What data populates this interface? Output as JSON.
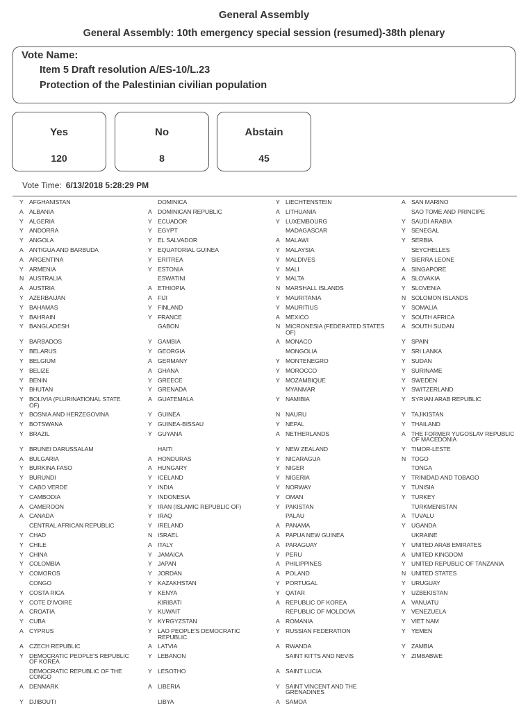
{
  "header": {
    "title": "General Assembly",
    "subtitle": "General Assembly: 10th emergency special session (resumed)-38th plenary"
  },
  "vote_name": {
    "label": "Vote Name:",
    "line1": "Item 5 Draft resolution A/ES-10/L.23",
    "line2": "Protection of the Palestinian civilian population"
  },
  "tally": [
    {
      "label": "Yes",
      "count": "120"
    },
    {
      "label": "No",
      "count": "8"
    },
    {
      "label": "Abstain",
      "count": "45"
    }
  ],
  "vote_time": {
    "label": "Vote Time:",
    "value": "6/13/2018 5:28:29 PM"
  },
  "votes": {
    "columns": [
      [
        [
          "Y",
          "AFGHANISTAN"
        ],
        [
          "A",
          "ALBANIA"
        ],
        [
          "Y",
          "ALGERIA"
        ],
        [
          "Y",
          "ANDORRA"
        ],
        [
          "Y",
          "ANGOLA"
        ],
        [
          "A",
          "ANTIGUA AND BARBUDA"
        ],
        [
          "A",
          "ARGENTINA"
        ],
        [
          "Y",
          "ARMENIA"
        ],
        [
          "N",
          "AUSTRALIA"
        ],
        [
          "A",
          "AUSTRIA"
        ],
        [
          "Y",
          "AZERBAIJAN"
        ],
        [
          "Y",
          "BAHAMAS"
        ],
        [
          "Y",
          "BAHRAIN"
        ],
        [
          "Y",
          "BANGLADESH"
        ],
        [
          "Y",
          "BARBADOS"
        ],
        [
          "Y",
          "BELARUS"
        ],
        [
          "Y",
          "BELGIUM"
        ],
        [
          "Y",
          "BELIZE"
        ],
        [
          "Y",
          "BENIN"
        ],
        [
          "Y",
          "BHUTAN"
        ],
        [
          "Y",
          "BOLIVIA (PLURINATIONAL STATE OF)"
        ],
        [
          "Y",
          "BOSNIA AND HERZEGOVINA"
        ],
        [
          "Y",
          "BOTSWANA"
        ],
        [
          "Y",
          "BRAZIL"
        ],
        [
          "Y",
          "BRUNEI DARUSSALAM"
        ],
        [
          "A",
          "BULGARIA"
        ],
        [
          "Y",
          "BURKINA FASO"
        ],
        [
          "Y",
          "BURUNDI"
        ],
        [
          "Y",
          "CABO VERDE"
        ],
        [
          "Y",
          "CAMBODIA"
        ],
        [
          "A",
          "CAMEROON"
        ],
        [
          "A",
          "CANADA"
        ],
        [
          "",
          "CENTRAL AFRICAN REPUBLIC"
        ],
        [
          "Y",
          "CHAD"
        ],
        [
          "Y",
          "CHILE"
        ],
        [
          "Y",
          "CHINA"
        ],
        [
          "Y",
          "COLOMBIA"
        ],
        [
          "Y",
          "COMOROS"
        ],
        [
          "",
          "CONGO"
        ],
        [
          "Y",
          "COSTA RICA"
        ],
        [
          "Y",
          "COTE D'IVOIRE"
        ],
        [
          "A",
          "CROATIA"
        ],
        [
          "Y",
          "CUBA"
        ],
        [
          "A",
          "CYPRUS"
        ],
        [
          "A",
          "CZECH REPUBLIC"
        ],
        [
          "Y",
          "DEMOCRATIC PEOPLE'S REPUBLIC OF KOREA"
        ],
        [
          "",
          "DEMOCRATIC REPUBLIC OF THE CONGO"
        ],
        [
          "A",
          "DENMARK"
        ],
        [
          "Y",
          "DJIBOUTI"
        ]
      ],
      [
        [
          "",
          "DOMINICA"
        ],
        [
          "A",
          "DOMINICAN REPUBLIC"
        ],
        [
          "Y",
          "ECUADOR"
        ],
        [
          "Y",
          "EGYPT"
        ],
        [
          "Y",
          "EL SALVADOR"
        ],
        [
          "Y",
          "EQUATORIAL GUINEA"
        ],
        [
          "Y",
          "ERITREA"
        ],
        [
          "Y",
          "ESTONIA"
        ],
        [
          "",
          "ESWATINI"
        ],
        [
          "A",
          "ETHIOPIA"
        ],
        [
          "A",
          "FIJI"
        ],
        [
          "Y",
          "FINLAND"
        ],
        [
          "Y",
          "FRANCE"
        ],
        [
          "",
          "GABON"
        ],
        [
          "Y",
          "GAMBIA"
        ],
        [
          "Y",
          "GEORGIA"
        ],
        [
          "A",
          "GERMANY"
        ],
        [
          "A",
          "GHANA"
        ],
        [
          "Y",
          "GREECE"
        ],
        [
          "Y",
          "GRENADA"
        ],
        [
          "A",
          "GUATEMALA"
        ],
        [
          "Y",
          "GUINEA"
        ],
        [
          "Y",
          "GUINEA-BISSAU"
        ],
        [
          "Y",
          "GUYANA"
        ],
        [
          "",
          "HAITI"
        ],
        [
          "A",
          "HONDURAS"
        ],
        [
          "A",
          "HUNGARY"
        ],
        [
          "Y",
          "ICELAND"
        ],
        [
          "Y",
          "INDIA"
        ],
        [
          "Y",
          "INDONESIA"
        ],
        [
          "Y",
          "IRAN (ISLAMIC REPUBLIC OF)"
        ],
        [
          "Y",
          "IRAQ"
        ],
        [
          "Y",
          "IRELAND"
        ],
        [
          "N",
          "ISRAEL"
        ],
        [
          "A",
          "ITALY"
        ],
        [
          "Y",
          "JAMAICA"
        ],
        [
          "Y",
          "JAPAN"
        ],
        [
          "Y",
          "JORDAN"
        ],
        [
          "Y",
          "KAZAKHSTAN"
        ],
        [
          "Y",
          "KENYA"
        ],
        [
          "",
          "KIRIBATI"
        ],
        [
          "Y",
          "KUWAIT"
        ],
        [
          "Y",
          "KYRGYZSTAN"
        ],
        [
          "Y",
          "LAO PEOPLE'S DEMOCRATIC REPUBLIC"
        ],
        [
          "A",
          "LATVIA"
        ],
        [
          "Y",
          "LEBANON"
        ],
        [
          "Y",
          "LESOTHO"
        ],
        [
          "A",
          "LIBERIA"
        ],
        [
          "",
          "LIBYA"
        ]
      ],
      [
        [
          "Y",
          "LIECHTENSTEIN"
        ],
        [
          "A",
          "LITHUANIA"
        ],
        [
          "Y",
          "LUXEMBOURG"
        ],
        [
          "",
          "MADAGASCAR"
        ],
        [
          "A",
          "MALAWI"
        ],
        [
          "Y",
          "MALAYSIA"
        ],
        [
          "Y",
          "MALDIVES"
        ],
        [
          "Y",
          "MALI"
        ],
        [
          "Y",
          "MALTA"
        ],
        [
          "N",
          "MARSHALL ISLANDS"
        ],
        [
          "Y",
          "MAURITANIA"
        ],
        [
          "Y",
          "MAURITIUS"
        ],
        [
          "A",
          "MEXICO"
        ],
        [
          "N",
          "MICRONESIA (FEDERATED STATES OF)"
        ],
        [
          "A",
          "MONACO"
        ],
        [
          "",
          "MONGOLIA"
        ],
        [
          "Y",
          "MONTENEGRO"
        ],
        [
          "Y",
          "MOROCCO"
        ],
        [
          "Y",
          "MOZAMBIQUE"
        ],
        [
          "",
          "MYANMAR"
        ],
        [
          "Y",
          "NAMIBIA"
        ],
        [
          "N",
          "NAURU"
        ],
        [
          "Y",
          "NEPAL"
        ],
        [
          "A",
          "NETHERLANDS"
        ],
        [
          "Y",
          "NEW ZEALAND"
        ],
        [
          "Y",
          "NICARAGUA"
        ],
        [
          "Y",
          "NIGER"
        ],
        [
          "Y",
          "NIGERIA"
        ],
        [
          "Y",
          "NORWAY"
        ],
        [
          "Y",
          "OMAN"
        ],
        [
          "Y",
          "PAKISTAN"
        ],
        [
          "",
          "PALAU"
        ],
        [
          "A",
          "PANAMA"
        ],
        [
          "A",
          "PAPUA NEW GUINEA"
        ],
        [
          "A",
          "PARAGUAY"
        ],
        [
          "Y",
          "PERU"
        ],
        [
          "A",
          "PHILIPPINES"
        ],
        [
          "A",
          "POLAND"
        ],
        [
          "Y",
          "PORTUGAL"
        ],
        [
          "Y",
          "QATAR"
        ],
        [
          "A",
          "REPUBLIC OF KOREA"
        ],
        [
          "",
          "REPUBLIC OF MOLDOVA"
        ],
        [
          "A",
          "ROMANIA"
        ],
        [
          "Y",
          "RUSSIAN FEDERATION"
        ],
        [
          "A",
          "RWANDA"
        ],
        [
          "",
          "SAINT KITTS AND NEVIS"
        ],
        [
          "A",
          "SAINT LUCIA"
        ],
        [
          "Y",
          "SAINT VINCENT AND THE GRENADINES"
        ],
        [
          "A",
          "SAMOA"
        ]
      ],
      [
        [
          "A",
          "SAN MARINO"
        ],
        [
          "",
          "SAO TOME AND PRINCIPE"
        ],
        [
          "Y",
          "SAUDI ARABIA"
        ],
        [
          "Y",
          "SENEGAL"
        ],
        [
          "Y",
          "SERBIA"
        ],
        [
          "",
          "SEYCHELLES"
        ],
        [
          "Y",
          "SIERRA LEONE"
        ],
        [
          "A",
          "SINGAPORE"
        ],
        [
          "A",
          "SLOVAKIA"
        ],
        [
          "Y",
          "SLOVENIA"
        ],
        [
          "N",
          "SOLOMON ISLANDS"
        ],
        [
          "Y",
          "SOMALIA"
        ],
        [
          "Y",
          "SOUTH AFRICA"
        ],
        [
          "A",
          "SOUTH SUDAN"
        ],
        [
          "Y",
          "SPAIN"
        ],
        [
          "Y",
          "SRI LANKA"
        ],
        [
          "Y",
          "SUDAN"
        ],
        [
          "Y",
          "SURINAME"
        ],
        [
          "Y",
          "SWEDEN"
        ],
        [
          "Y",
          "SWITZERLAND"
        ],
        [
          "Y",
          "SYRIAN ARAB REPUBLIC"
        ],
        [
          "Y",
          "TAJIKISTAN"
        ],
        [
          "Y",
          "THAILAND"
        ],
        [
          "A",
          "THE FORMER YUGOSLAV REPUBLIC OF MACEDONIA"
        ],
        [
          "Y",
          "TIMOR-LESTE"
        ],
        [
          "N",
          "TOGO"
        ],
        [
          "",
          "TONGA"
        ],
        [
          "Y",
          "TRINIDAD AND TOBAGO"
        ],
        [
          "Y",
          "TUNISIA"
        ],
        [
          "Y",
          "TURKEY"
        ],
        [
          "",
          "TURKMENISTAN"
        ],
        [
          "A",
          "TUVALU"
        ],
        [
          "Y",
          "UGANDA"
        ],
        [
          "",
          "UKRAINE"
        ],
        [
          "Y",
          "UNITED ARAB EMIRATES"
        ],
        [
          "A",
          "UNITED KINGDOM"
        ],
        [
          "Y",
          "UNITED REPUBLIC OF TANZANIA"
        ],
        [
          "N",
          "UNITED STATES"
        ],
        [
          "Y",
          "URUGUAY"
        ],
        [
          "Y",
          "UZBEKISTAN"
        ],
        [
          "A",
          "VANUATU"
        ],
        [
          "Y",
          "VENEZUELA"
        ],
        [
          "Y",
          "VIET NAM"
        ],
        [
          "Y",
          "YEMEN"
        ],
        [
          "Y",
          "ZAMBIA"
        ],
        [
          "Y",
          "ZIMBABWE"
        ]
      ]
    ]
  }
}
